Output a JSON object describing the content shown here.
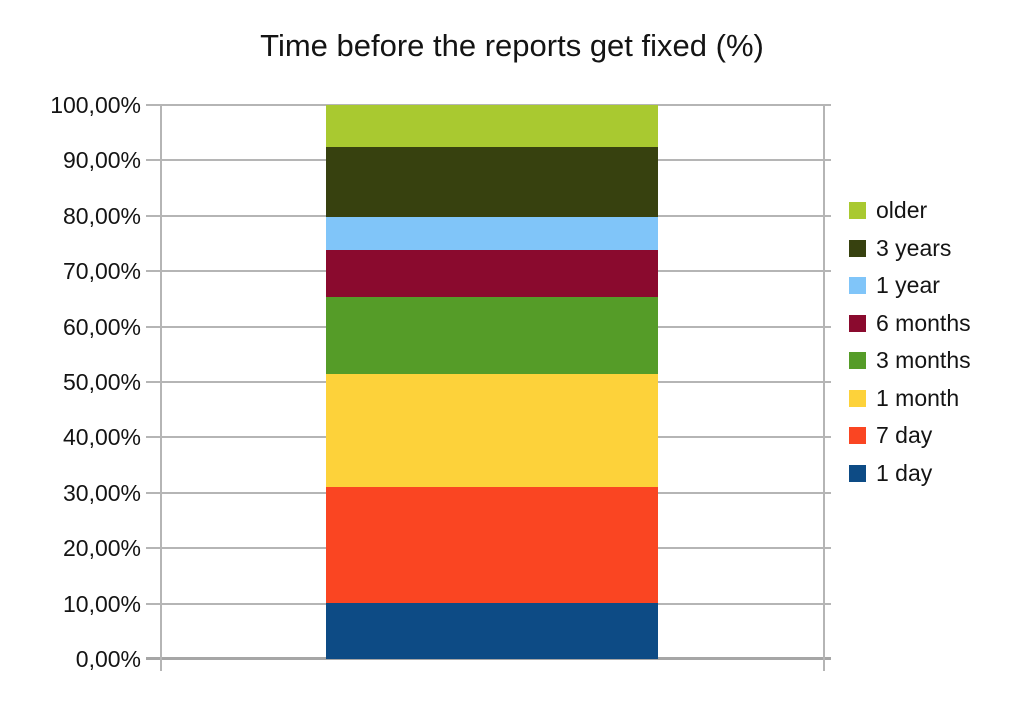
{
  "chart_data": {
    "type": "bar",
    "stacked": true,
    "title": "Time before the reports get fixed (%)",
    "categories": [
      ""
    ],
    "series": [
      {
        "name": "1 day",
        "values": [
          10.1
        ],
        "color": "#0d4b85"
      },
      {
        "name": "7 day",
        "values": [
          21.0
        ],
        "color": "#fa4522"
      },
      {
        "name": "1 month",
        "values": [
          20.3
        ],
        "color": "#fdd23a"
      },
      {
        "name": "3 months",
        "values": [
          13.9
        ],
        "color": "#559c28"
      },
      {
        "name": "6 months",
        "values": [
          8.5
        ],
        "color": "#8a0a2e"
      },
      {
        "name": "1 year",
        "values": [
          6.0
        ],
        "color": "#80c5f9"
      },
      {
        "name": "3 years",
        "values": [
          12.7
        ],
        "color": "#37410f"
      },
      {
        "name": "older",
        "values": [
          7.5
        ],
        "color": "#a9c930"
      }
    ],
    "ylim": [
      0,
      100
    ],
    "grid": true,
    "yticks": [
      {
        "value": 0,
        "label": "0,00%"
      },
      {
        "value": 10,
        "label": "10,00%"
      },
      {
        "value": 20,
        "label": "20,00%"
      },
      {
        "value": 30,
        "label": "30,00%"
      },
      {
        "value": 40,
        "label": "40,00%"
      },
      {
        "value": 50,
        "label": "50,00%"
      },
      {
        "value": 60,
        "label": "60,00%"
      },
      {
        "value": 70,
        "label": "70,00%"
      },
      {
        "value": 80,
        "label": "80,00%"
      },
      {
        "value": 90,
        "label": "90,00%"
      },
      {
        "value": 100,
        "label": "100,00%"
      }
    ],
    "legend_position": "right",
    "legend_items": [
      "older",
      "3 years",
      "1 year",
      "6 months",
      "3 months",
      "1 month",
      "7 day",
      "1 day"
    ]
  },
  "colors": {
    "gridline": "#b5b5b5",
    "baseline": "#a6a6a6",
    "text": "#141414",
    "background": "#ffffff"
  }
}
